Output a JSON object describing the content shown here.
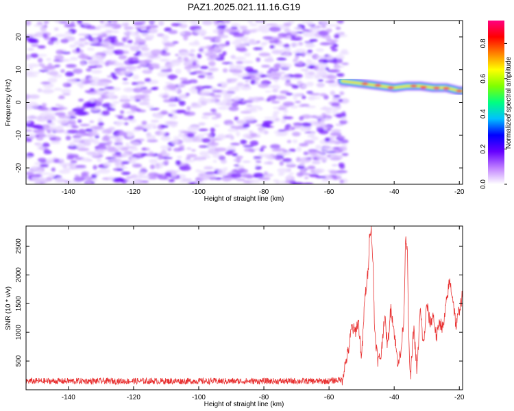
{
  "title": "PAZ1.2025.021.11.16.G19",
  "chart_data": [
    {
      "type": "heatmap",
      "xlabel": "Height of straight line (km)",
      "ylabel": "Frequency (Hz)",
      "xlim": [
        -153,
        -19
      ],
      "ylim": [
        -25,
        25
      ],
      "xticks": [
        -140,
        -120,
        -100,
        -80,
        -60,
        -40,
        -20
      ],
      "yticks": [
        -20,
        -10,
        0,
        10,
        20
      ],
      "noise_region_x": [
        -153,
        -55
      ],
      "signal_ridge": {
        "x": [
          -56,
          -52,
          -48,
          -44,
          -40,
          -36,
          -32,
          -28,
          -24,
          -20,
          -19
        ],
        "frequency": [
          6.5,
          6.0,
          5.5,
          5.0,
          4.5,
          5.0,
          5.0,
          4.5,
          4.5,
          3.5,
          3.5
        ]
      },
      "colorbar": {
        "label": "Normalized spectral amplitude",
        "range": [
          0,
          0.93
        ],
        "ticks": [
          0.0,
          0.2,
          0.4,
          0.6,
          0.8
        ],
        "tick_labels": [
          "0.0",
          "0.2",
          "0.4",
          "0.6",
          "0.8"
        ],
        "colors": [
          "#ffffff",
          "#c080ff",
          "#6600ff",
          "#0000ff",
          "#00c0ff",
          "#00ff80",
          "#80ff00",
          "#ffff00",
          "#ff8000",
          "#ff0000",
          "#ff0080"
        ]
      }
    },
    {
      "type": "line",
      "xlabel": "Height of straight line (km)",
      "ylabel": "SNR (10 * v/v)",
      "xlim": [
        -153,
        -19
      ],
      "ylim": [
        0,
        2850
      ],
      "xticks": [
        -140,
        -120,
        -100,
        -80,
        -60,
        -40,
        -20
      ],
      "yticks": [
        500,
        1000,
        1500,
        2000,
        2500
      ],
      "series": [
        {
          "color": "#e83030",
          "x": [
            -153,
            -140,
            -130,
            -120,
            -110,
            -100,
            -90,
            -80,
            -70,
            -60,
            -56,
            -55,
            -54,
            -53,
            -52,
            -51,
            -50,
            -49,
            -48,
            -47.5,
            -47,
            -46.5,
            -46,
            -45,
            -44,
            -43,
            -42,
            -41,
            -40,
            -39,
            -38,
            -37,
            -36.5,
            -36,
            -35.5,
            -35,
            -34,
            -33,
            -32,
            -31,
            -30,
            -29,
            -28,
            -27,
            -26,
            -25,
            -24,
            -23,
            -22,
            -21,
            -20,
            -19
          ],
          "y": [
            150,
            150,
            150,
            150,
            150,
            150,
            150,
            150,
            150,
            150,
            180,
            450,
            700,
            1100,
            1000,
            1200,
            550,
            1600,
            2050,
            2800,
            2750,
            2200,
            1050,
            500,
            600,
            1300,
            750,
            1450,
            1000,
            500,
            600,
            1300,
            2700,
            2500,
            800,
            200,
            1100,
            300,
            1400,
            750,
            1500,
            1150,
            1300,
            900,
            1200,
            1050,
            1500,
            1900,
            1600,
            1100,
            1400,
            1650
          ]
        }
      ]
    }
  ]
}
